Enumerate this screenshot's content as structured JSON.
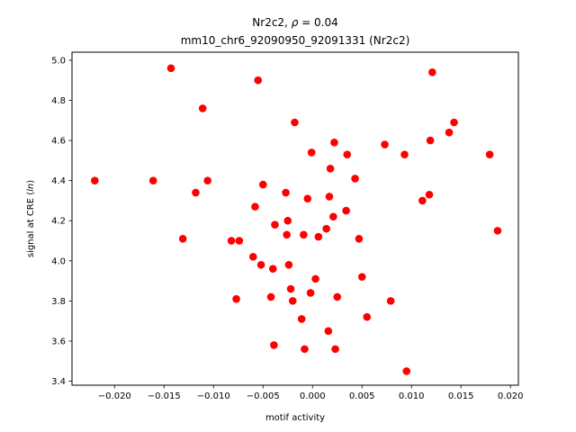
{
  "chart_data": {
    "type": "scatter",
    "title_line1_prefix": "Nr2c2, ",
    "title_line1_symbol": "ρ",
    "title_line1_suffix": " = 0.04",
    "title_line2": "mm10_chr6_92090950_92091331 (Nr2c2)",
    "xlabel": "motif activity",
    "ylabel_prefix": "signal at CRE (",
    "ylabel_italic": "ln",
    "ylabel_suffix": ")",
    "xlim": [
      -0.0243,
      0.0208
    ],
    "ylim": [
      3.38,
      5.04
    ],
    "xticks": [
      -0.02,
      -0.015,
      -0.01,
      -0.005,
      0.0,
      0.005,
      0.01,
      0.015,
      0.02
    ],
    "xtick_labels": [
      "−0.020",
      "−0.015",
      "−0.010",
      "−0.005",
      "0.000",
      "0.005",
      "0.010",
      "0.015",
      "0.020"
    ],
    "yticks": [
      3.4,
      3.6,
      3.8,
      4.0,
      4.2,
      4.4,
      4.6,
      4.8,
      5.0
    ],
    "ytick_labels": [
      "3.4",
      "3.6",
      "3.8",
      "4.0",
      "4.2",
      "4.4",
      "4.6",
      "4.8",
      "5.0"
    ],
    "marker_color": "#ff0000",
    "grid": false,
    "points": [
      {
        "x": -0.022,
        "y": 4.4
      },
      {
        "x": -0.0161,
        "y": 4.4
      },
      {
        "x": -0.0143,
        "y": 4.96
      },
      {
        "x": -0.0131,
        "y": 4.11
      },
      {
        "x": -0.0118,
        "y": 4.34
      },
      {
        "x": -0.0111,
        "y": 4.76
      },
      {
        "x": -0.0106,
        "y": 4.4
      },
      {
        "x": -0.0082,
        "y": 4.1
      },
      {
        "x": -0.0077,
        "y": 3.81
      },
      {
        "x": -0.0074,
        "y": 4.1
      },
      {
        "x": -0.006,
        "y": 4.02
      },
      {
        "x": -0.0058,
        "y": 4.27
      },
      {
        "x": -0.0055,
        "y": 4.9
      },
      {
        "x": -0.0052,
        "y": 3.98
      },
      {
        "x": -0.005,
        "y": 4.38
      },
      {
        "x": -0.0042,
        "y": 3.82
      },
      {
        "x": -0.004,
        "y": 3.96
      },
      {
        "x": -0.0039,
        "y": 3.58
      },
      {
        "x": -0.0038,
        "y": 4.18
      },
      {
        "x": -0.0027,
        "y": 4.34
      },
      {
        "x": -0.0026,
        "y": 4.13
      },
      {
        "x": -0.0025,
        "y": 4.2
      },
      {
        "x": -0.0024,
        "y": 3.98
      },
      {
        "x": -0.0022,
        "y": 3.86
      },
      {
        "x": -0.002,
        "y": 3.8
      },
      {
        "x": -0.0018,
        "y": 4.69
      },
      {
        "x": -0.0011,
        "y": 3.71
      },
      {
        "x": -0.0009,
        "y": 4.13
      },
      {
        "x": -0.0008,
        "y": 3.56
      },
      {
        "x": -0.0005,
        "y": 4.31
      },
      {
        "x": -0.0002,
        "y": 3.84
      },
      {
        "x": -0.0001,
        "y": 4.54
      },
      {
        "x": 0.0003,
        "y": 3.91
      },
      {
        "x": 0.0006,
        "y": 4.12
      },
      {
        "x": 0.0014,
        "y": 4.16
      },
      {
        "x": 0.0016,
        "y": 3.65
      },
      {
        "x": 0.0017,
        "y": 4.32
      },
      {
        "x": 0.0018,
        "y": 4.46
      },
      {
        "x": 0.0021,
        "y": 4.22
      },
      {
        "x": 0.0022,
        "y": 4.59
      },
      {
        "x": 0.0023,
        "y": 3.56
      },
      {
        "x": 0.0025,
        "y": 3.82
      },
      {
        "x": 0.0034,
        "y": 4.25
      },
      {
        "x": 0.0035,
        "y": 4.53
      },
      {
        "x": 0.0043,
        "y": 4.41
      },
      {
        "x": 0.0047,
        "y": 4.11
      },
      {
        "x": 0.005,
        "y": 3.92
      },
      {
        "x": 0.0055,
        "y": 3.72
      },
      {
        "x": 0.0073,
        "y": 4.58
      },
      {
        "x": 0.0079,
        "y": 3.8
      },
      {
        "x": 0.0093,
        "y": 4.53
      },
      {
        "x": 0.0095,
        "y": 3.45
      },
      {
        "x": 0.0111,
        "y": 4.3
      },
      {
        "x": 0.0118,
        "y": 4.33
      },
      {
        "x": 0.0119,
        "y": 4.6
      },
      {
        "x": 0.0121,
        "y": 4.94
      },
      {
        "x": 0.0138,
        "y": 4.64
      },
      {
        "x": 0.0143,
        "y": 4.69
      },
      {
        "x": 0.0179,
        "y": 4.53
      },
      {
        "x": 0.0187,
        "y": 4.15
      }
    ]
  }
}
